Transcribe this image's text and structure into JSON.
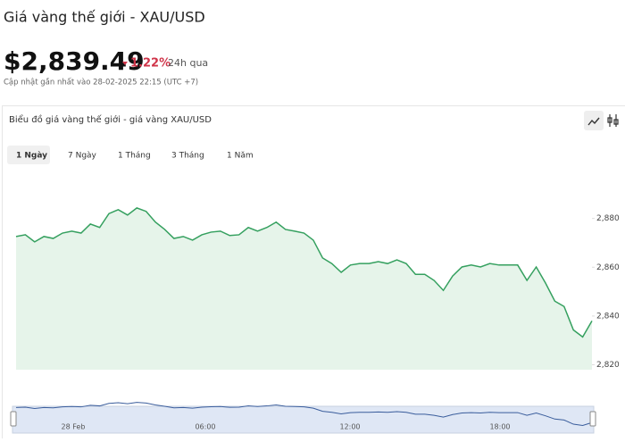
{
  "header": {
    "title": "Giá vàng thế giới - XAU/USD",
    "price": "$2,839.49",
    "change": "1.22%",
    "period": "24h qua",
    "updated": "Cập nhật gần nhất vào 28-02-2025 22:15 (UTC +7)"
  },
  "card": {
    "title": "Biểu đồ giá vàng thế giới - giá vàng XAU/USD",
    "tabs": [
      "1 Ngày",
      "7 Ngày",
      "1 Tháng",
      "3 Tháng",
      "1 Năm"
    ],
    "selected_tab": 0
  },
  "chart_data": {
    "type": "area",
    "color": "#35a05f",
    "fill": "#e6f4ea",
    "values": [
      2872.6,
      2873.3,
      2870.4,
      2872.6,
      2871.8,
      2874.0,
      2874.8,
      2874.0,
      2877.7,
      2876.3,
      2882.0,
      2883.6,
      2881.4,
      2884.3,
      2882.9,
      2878.5,
      2875.5,
      2871.8,
      2872.6,
      2871.1,
      2873.3,
      2874.4,
      2874.8,
      2873.0,
      2873.3,
      2876.3,
      2874.8,
      2876.3,
      2878.5,
      2875.5,
      2874.8,
      2874.0,
      2871.1,
      2863.8,
      2861.5,
      2857.9,
      2860.9,
      2861.5,
      2861.5,
      2862.3,
      2861.5,
      2863.0,
      2861.5,
      2857.1,
      2857.1,
      2854.6,
      2850.5,
      2856.4,
      2860.1,
      2860.9,
      2860.1,
      2861.5,
      2860.9,
      2860.9,
      2860.9,
      2854.6,
      2860.1,
      2853.5,
      2846.1,
      2843.9,
      2834.3,
      2831.4,
      2838.0
    ],
    "ylim": [
      2818,
      2900
    ],
    "yticks": [
      {
        "value": 2820,
        "label": "2,820"
      },
      {
        "value": 2840,
        "label": "2,840"
      },
      {
        "value": 2860,
        "label": "2,860"
      },
      {
        "value": 2880,
        "label": "2,880"
      }
    ],
    "navigator_labels": [
      "28 Feb",
      "06:00",
      "12:00",
      "18:00"
    ]
  }
}
